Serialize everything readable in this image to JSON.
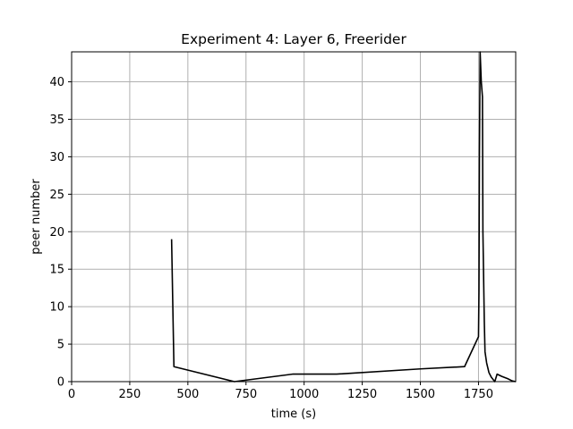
{
  "chart_data": {
    "type": "line",
    "title": "Experiment 4: Layer 6, Freerider",
    "xlabel": "time (s)",
    "ylabel": "peer number",
    "xlim": [
      0,
      1910
    ],
    "ylim": [
      0,
      44
    ],
    "xticks": [
      0,
      250,
      500,
      750,
      1000,
      1250,
      1500,
      1750
    ],
    "yticks": [
      0,
      5,
      10,
      15,
      20,
      25,
      30,
      35,
      40
    ],
    "grid": true,
    "legend": "none",
    "series": [
      {
        "color": "#000000",
        "points": [
          [
            430,
            19
          ],
          [
            440,
            2
          ],
          [
            700,
            0
          ],
          [
            950,
            1
          ],
          [
            1140,
            1
          ],
          [
            1500,
            1.7
          ],
          [
            1690,
            2
          ],
          [
            1750,
            6
          ],
          [
            1752,
            12
          ],
          [
            1754,
            30
          ],
          [
            1757,
            44
          ],
          [
            1762,
            40
          ],
          [
            1767,
            38
          ],
          [
            1769,
            20
          ],
          [
            1775,
            8
          ],
          [
            1778,
            4
          ],
          [
            1785,
            2.5
          ],
          [
            1795,
            1.2
          ],
          [
            1805,
            0.6
          ],
          [
            1815,
            0.2
          ],
          [
            1820,
            0
          ],
          [
            1830,
            1
          ],
          [
            1850,
            0.7
          ],
          [
            1875,
            0.4
          ],
          [
            1895,
            0.1
          ],
          [
            1910,
            0
          ]
        ]
      }
    ]
  }
}
